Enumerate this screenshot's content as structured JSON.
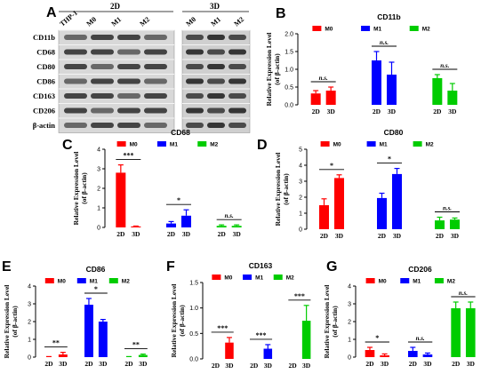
{
  "blot": {
    "panel_letter": "A",
    "groups": [
      {
        "label": "2D",
        "lanes": [
          "THP-1",
          "M0",
          "M1",
          "M2"
        ]
      },
      {
        "label": "3D",
        "lanes": [
          "M0",
          "M1",
          "M2"
        ]
      }
    ],
    "rows": [
      "CD11b",
      "CD68",
      "CD80",
      "CD86",
      "CD163",
      "CD206",
      "β-actin"
    ]
  },
  "colors": {
    "M0": "#ff0000",
    "M1": "#0000ff",
    "M2": "#00cc00"
  },
  "chart_data": [
    {
      "panel": "B",
      "type": "bar",
      "title": "CD11b",
      "ylabel": "Relative Expression Level",
      "ylabel2": "(of β-actin)",
      "ylim": [
        0,
        2
      ],
      "yticks": [
        0,
        0.5,
        1.0,
        1.5,
        2.0
      ],
      "categories": [
        "2D",
        "3D"
      ],
      "series": [
        {
          "name": "M0",
          "values": [
            0.32,
            0.4
          ],
          "errors": [
            0.08,
            0.1
          ],
          "sig": "n.s."
        },
        {
          "name": "M1",
          "values": [
            1.25,
            0.85
          ],
          "errors": [
            0.25,
            0.35
          ],
          "sig": "n.s."
        },
        {
          "name": "M2",
          "values": [
            0.75,
            0.4
          ],
          "errors": [
            0.1,
            0.2
          ],
          "sig": "n.s."
        }
      ]
    },
    {
      "panel": "C",
      "type": "bar",
      "title": "CD68",
      "ylabel": "Relative Expression Level",
      "ylabel2": "(of β-actin)",
      "ylim": [
        0,
        4
      ],
      "yticks": [
        0,
        1,
        2,
        3,
        4
      ],
      "categories": [
        "2D",
        "3D"
      ],
      "series": [
        {
          "name": "M0",
          "values": [
            2.8,
            0.05
          ],
          "errors": [
            0.4,
            0.02
          ],
          "sig": "***"
        },
        {
          "name": "M1",
          "values": [
            0.2,
            0.6
          ],
          "errors": [
            0.1,
            0.3
          ],
          "sig": "*"
        },
        {
          "name": "M2",
          "values": [
            0.08,
            0.08
          ],
          "errors": [
            0.05,
            0.05
          ],
          "sig": "n.s."
        }
      ]
    },
    {
      "panel": "D",
      "type": "bar",
      "title": "CD80",
      "ylabel": "Relative Expression Level",
      "ylabel2": "(of β-actin)",
      "ylim": [
        0,
        5
      ],
      "yticks": [
        0,
        1,
        2,
        3,
        4,
        5
      ],
      "categories": [
        "2D",
        "3D"
      ],
      "series": [
        {
          "name": "M0",
          "values": [
            1.5,
            3.2
          ],
          "errors": [
            0.4,
            0.2
          ],
          "sig": "*"
        },
        {
          "name": "M1",
          "values": [
            1.95,
            3.45
          ],
          "errors": [
            0.3,
            0.35
          ],
          "sig": "*"
        },
        {
          "name": "M2",
          "values": [
            0.55,
            0.6
          ],
          "errors": [
            0.2,
            0.1
          ],
          "sig": "n.s."
        }
      ]
    },
    {
      "panel": "E",
      "type": "bar",
      "title": "CD86",
      "ylabel": "Relative Expression Level",
      "ylabel2": "(of β-actin)",
      "ylim": [
        0,
        4
      ],
      "yticks": [
        0,
        1,
        2,
        3,
        4
      ],
      "categories": [
        "2D",
        "3D"
      ],
      "series": [
        {
          "name": "M0",
          "values": [
            0.02,
            0.15
          ],
          "errors": [
            0.01,
            0.12
          ],
          "sig": "**"
        },
        {
          "name": "M1",
          "values": [
            2.95,
            2.0
          ],
          "errors": [
            0.35,
            0.12
          ],
          "sig": "*"
        },
        {
          "name": "M2",
          "values": [
            0.02,
            0.12
          ],
          "errors": [
            0.01,
            0.05
          ],
          "sig": "**"
        }
      ]
    },
    {
      "panel": "F",
      "type": "bar",
      "title": "CD163",
      "ylabel": "Relative Expression Level",
      "ylabel2": "(of β-actin)",
      "ylim": [
        0,
        1.5
      ],
      "yticks": [
        0,
        0.5,
        1.0,
        1.5
      ],
      "categories": [
        "2D",
        "3D"
      ],
      "series": [
        {
          "name": "M0",
          "values": [
            0.0,
            0.32
          ],
          "errors": [
            0.0,
            0.1
          ],
          "sig": "***"
        },
        {
          "name": "M1",
          "values": [
            0.0,
            0.2
          ],
          "errors": [
            0.0,
            0.08
          ],
          "sig": "***"
        },
        {
          "name": "M2",
          "values": [
            0.0,
            0.75
          ],
          "errors": [
            0.0,
            0.3
          ],
          "sig": "***"
        }
      ]
    },
    {
      "panel": "G",
      "type": "bar",
      "title": "CD206",
      "ylabel": "Relative Expression Level",
      "ylabel2": "(of β-actin)",
      "ylim": [
        0,
        4
      ],
      "yticks": [
        0,
        1,
        2,
        3,
        4
      ],
      "categories": [
        "2D",
        "3D"
      ],
      "series": [
        {
          "name": "M0",
          "values": [
            0.4,
            0.1
          ],
          "errors": [
            0.15,
            0.08
          ],
          "sig": "*"
        },
        {
          "name": "M1",
          "values": [
            0.35,
            0.15
          ],
          "errors": [
            0.2,
            0.08
          ],
          "sig": "n.s."
        },
        {
          "name": "M2",
          "values": [
            2.75,
            2.75
          ],
          "errors": [
            0.35,
            0.35
          ],
          "sig": "n.s."
        }
      ]
    }
  ]
}
